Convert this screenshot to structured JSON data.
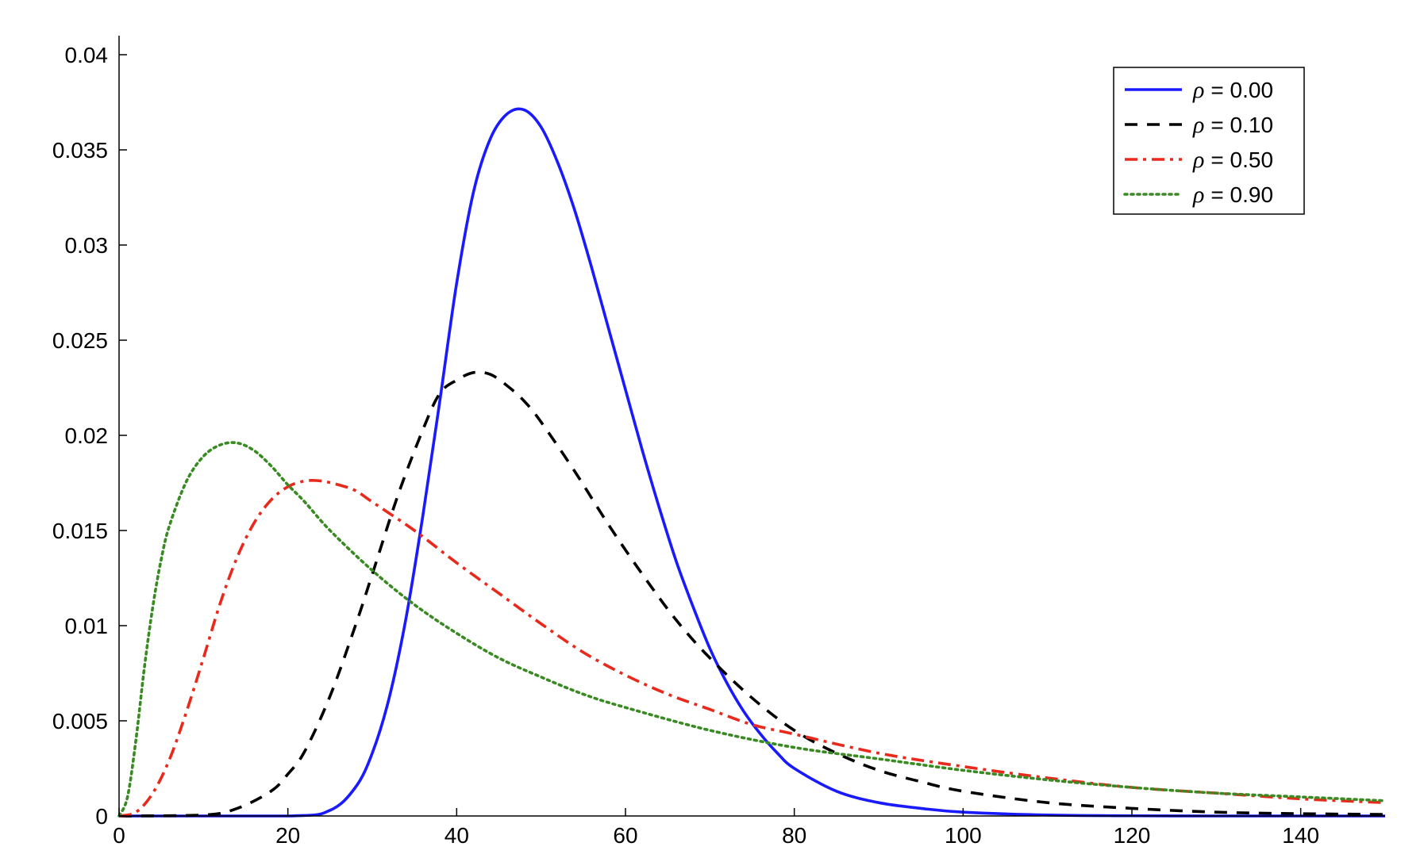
{
  "chart_data": {
    "type": "line",
    "title": "",
    "xlabel": "",
    "ylabel": "",
    "xlim": [
      0,
      150
    ],
    "ylim": [
      0,
      0.041
    ],
    "x_ticks": [
      0,
      20,
      40,
      60,
      80,
      100,
      120,
      140
    ],
    "x_tick_labels": [
      "0",
      "20",
      "40",
      "60",
      "80",
      "100",
      "120",
      "140"
    ],
    "y_ticks": [
      0,
      0.005,
      0.01,
      0.015,
      0.02,
      0.025,
      0.03,
      0.035,
      0.04
    ],
    "y_tick_labels": [
      "0",
      "0.005",
      "0.01",
      "0.015",
      "0.02",
      "0.025",
      "0.03",
      "0.035",
      "0.04"
    ],
    "grid": false,
    "legend_position": "top-right",
    "legend_symbol": "ρ",
    "series": [
      {
        "name": "= 0.00",
        "color": "#1a1aff",
        "style": "solid",
        "x": [
          0,
          20,
          25,
          28,
          30,
          32,
          34,
          36,
          38,
          40,
          42,
          44,
          46,
          48,
          50,
          52,
          54,
          56,
          58,
          60,
          62,
          64,
          66,
          68,
          70,
          72,
          74,
          76,
          78,
          80,
          85,
          90,
          95,
          100,
          110,
          120,
          130,
          140,
          150
        ],
        "y": [
          0,
          0.0,
          0.0003,
          0.0015,
          0.0033,
          0.0062,
          0.0104,
          0.0158,
          0.0218,
          0.028,
          0.0328,
          0.0356,
          0.0369,
          0.0371,
          0.0362,
          0.0343,
          0.0318,
          0.0288,
          0.0256,
          0.0224,
          0.0192,
          0.0162,
          0.0134,
          0.011,
          0.0088,
          0.007,
          0.0055,
          0.0043,
          0.0033,
          0.0025,
          0.0013,
          0.0007,
          0.0004,
          0.0002,
          5e-05,
          1e-05,
          0.0,
          0.0,
          0.0
        ]
      },
      {
        "name": "= 0.10",
        "color": "#000000",
        "style": "dashed",
        "x": [
          0,
          10,
          14,
          18,
          20,
          22,
          25,
          28,
          30,
          33,
          36,
          38,
          40,
          42,
          44,
          46,
          48,
          50,
          54,
          58,
          62,
          66,
          70,
          75,
          80,
          85,
          90,
          95,
          100,
          110,
          120,
          130,
          140,
          150
        ],
        "y": [
          0,
          5e-05,
          0.0004,
          0.0013,
          0.0022,
          0.0034,
          0.0063,
          0.01,
          0.0127,
          0.0168,
          0.0203,
          0.0222,
          0.0229,
          0.0233,
          0.0232,
          0.0226,
          0.0218,
          0.0207,
          0.0181,
          0.0153,
          0.0127,
          0.0103,
          0.0083,
          0.0062,
          0.0045,
          0.0033,
          0.0024,
          0.0018,
          0.0013,
          0.0007,
          0.0004,
          0.0002,
          0.00012,
          8e-05
        ]
      },
      {
        "name": "= 0.50",
        "color": "#e8291c",
        "style": "dashdot",
        "x": [
          0,
          2,
          4,
          6,
          8,
          10,
          12,
          14,
          16,
          18,
          20,
          22,
          24,
          26,
          28,
          30,
          35,
          40,
          45,
          50,
          55,
          60,
          65,
          70,
          75,
          80,
          90,
          100,
          110,
          120,
          130,
          140,
          150
        ],
        "y": [
          0,
          0.0002,
          0.0012,
          0.003,
          0.0055,
          0.0083,
          0.0112,
          0.0136,
          0.0154,
          0.0166,
          0.0173,
          0.0176,
          0.0176,
          0.0174,
          0.0171,
          0.0165,
          0.015,
          0.0133,
          0.0117,
          0.0101,
          0.0086,
          0.0074,
          0.0064,
          0.0056,
          0.0048,
          0.0043,
          0.0033,
          0.0026,
          0.002,
          0.0015,
          0.0012,
          0.0009,
          0.0007
        ]
      },
      {
        "name": "= 0.90",
        "color": "#3a8a23",
        "style": "dotted",
        "x": [
          0,
          1,
          2,
          3,
          4,
          5,
          6,
          8,
          10,
          12,
          14,
          16,
          18,
          20,
          22,
          25,
          30,
          35,
          40,
          45,
          50,
          55,
          60,
          70,
          80,
          90,
          100,
          110,
          120,
          130,
          140,
          150
        ],
        "y": [
          0,
          0.001,
          0.004,
          0.0078,
          0.011,
          0.0135,
          0.0153,
          0.0176,
          0.0189,
          0.0195,
          0.0196,
          0.0192,
          0.0184,
          0.0174,
          0.0165,
          0.015,
          0.0129,
          0.0111,
          0.0096,
          0.0083,
          0.0073,
          0.0064,
          0.0057,
          0.0045,
          0.0036,
          0.003,
          0.0024,
          0.0019,
          0.0015,
          0.0012,
          0.001,
          0.0008
        ]
      }
    ]
  }
}
